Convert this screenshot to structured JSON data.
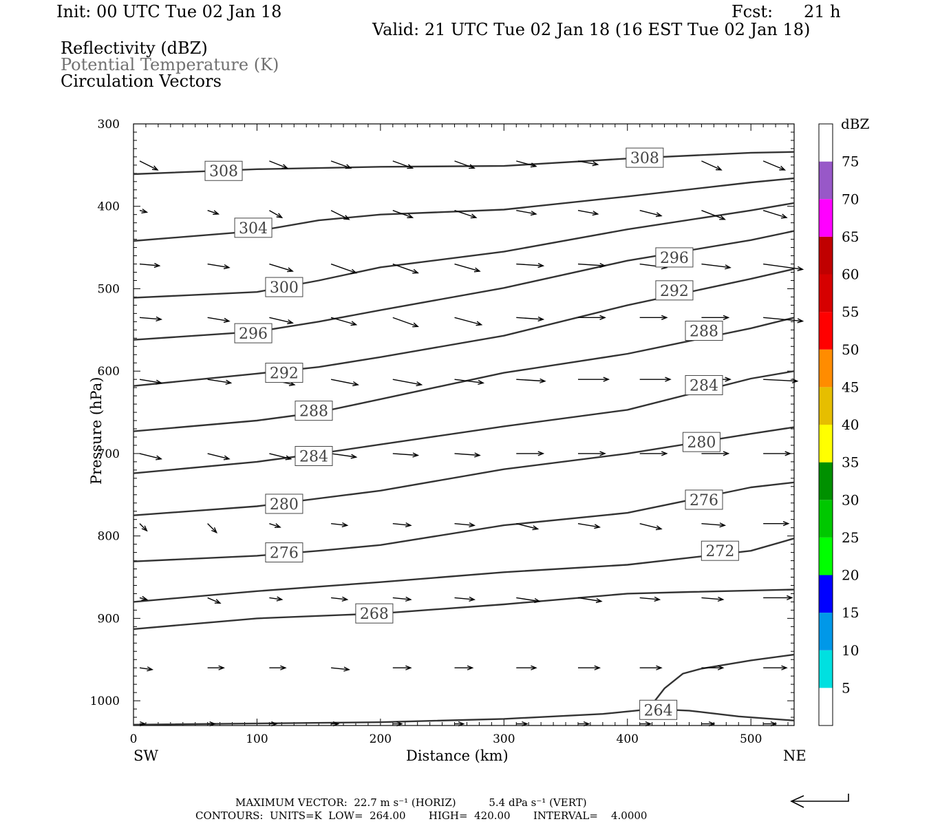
{
  "header": {
    "init": "Init: 00 UTC Tue 02 Jan 18",
    "fcst_label": "Fcst:",
    "fcst_value": "21 h",
    "valid": "Valid: 21 UTC Tue 02 Jan 18 (16 EST Tue 02 Jan 18)"
  },
  "legend_text": {
    "line1": "Reflectivity (dBZ)",
    "line2": "Potential Temperature (K)",
    "line3": "Circulation Vectors"
  },
  "footer": {
    "line1": "MAXIMUM VECTOR:  22.7 m s⁻¹ (HORIZ)          5.4 dPa s⁻¹ (VERT)",
    "line2": "CONTOURS:  UNITS=K  LOW=  264.00       HIGH=  420.00       INTERVAL=    4.0000"
  },
  "colorbar": {
    "title": "dBZ",
    "levels": [
      "5",
      "10",
      "15",
      "20",
      "25",
      "30",
      "35",
      "40",
      "45",
      "50",
      "55",
      "60",
      "65",
      "70",
      "75"
    ],
    "colors": [
      "#ffffff",
      "#00e0e0",
      "#0098e8",
      "#0000ff",
      "#00ff00",
      "#00c800",
      "#009000",
      "#ffff00",
      "#e6be00",
      "#ff8c00",
      "#ff0000",
      "#d60000",
      "#c00000",
      "#ff00ff",
      "#9858c8",
      "#ffffff"
    ]
  },
  "chart_data": {
    "type": "cross-section contour",
    "xlabel": "Distance (km)",
    "ylabel": "Pressure (hPa)",
    "x_end_left": "SW",
    "x_end_right": "NE",
    "xlim": [
      0,
      535
    ],
    "ylim": [
      1030,
      300
    ],
    "x_ticks": [
      0,
      100,
      200,
      300,
      400,
      500
    ],
    "y_ticks": [
      300,
      400,
      500,
      600,
      700,
      800,
      900,
      1000
    ],
    "contour_units": "K",
    "contours": [
      {
        "theta": 308,
        "points": [
          [
            0,
            361
          ],
          [
            100,
            355
          ],
          [
            200,
            352
          ],
          [
            300,
            351
          ],
          [
            400,
            342
          ],
          [
            500,
            335
          ],
          [
            535,
            334
          ]
        ],
        "label_at": [
          [
            73,
            357
          ],
          [
            414,
            341
          ]
        ]
      },
      {
        "theta": 304,
        "points": [
          [
            0,
            442
          ],
          [
            100,
            430
          ],
          [
            150,
            417
          ],
          [
            200,
            410
          ],
          [
            300,
            404
          ],
          [
            400,
            388
          ],
          [
            500,
            371
          ],
          [
            535,
            366
          ]
        ],
        "label_at": [
          [
            97,
            426
          ]
        ]
      },
      {
        "theta": 300,
        "points": [
          [
            0,
            511
          ],
          [
            100,
            504
          ],
          [
            150,
            490
          ],
          [
            200,
            474
          ],
          [
            300,
            455
          ],
          [
            400,
            428
          ],
          [
            500,
            405
          ],
          [
            535,
            396
          ]
        ],
        "label_at": [
          [
            122,
            498
          ]
        ]
      },
      {
        "theta": 296,
        "points": [
          [
            0,
            562
          ],
          [
            100,
            552
          ],
          [
            150,
            540
          ],
          [
            200,
            526
          ],
          [
            300,
            499
          ],
          [
            400,
            466
          ],
          [
            500,
            441
          ],
          [
            535,
            430
          ]
        ],
        "label_at": [
          [
            97,
            554
          ],
          [
            438,
            462
          ]
        ]
      },
      {
        "theta": 292,
        "points": [
          [
            0,
            618
          ],
          [
            100,
            603
          ],
          [
            150,
            595
          ],
          [
            200,
            583
          ],
          [
            300,
            557
          ],
          [
            400,
            520
          ],
          [
            500,
            488
          ],
          [
            535,
            476
          ]
        ],
        "label_at": [
          [
            122,
            602
          ],
          [
            438,
            502
          ]
        ]
      },
      {
        "theta": 288,
        "points": [
          [
            0,
            673
          ],
          [
            100,
            660
          ],
          [
            150,
            650
          ],
          [
            200,
            634
          ],
          [
            300,
            602
          ],
          [
            400,
            579
          ],
          [
            500,
            548
          ],
          [
            535,
            535
          ]
        ],
        "label_at": [
          [
            146,
            648
          ],
          [
            462,
            551
          ]
        ]
      },
      {
        "theta": 284,
        "points": [
          [
            0,
            724
          ],
          [
            100,
            710
          ],
          [
            150,
            700
          ],
          [
            200,
            689
          ],
          [
            300,
            667
          ],
          [
            400,
            647
          ],
          [
            500,
            609
          ],
          [
            535,
            600
          ]
        ],
        "label_at": [
          [
            146,
            703
          ],
          [
            462,
            617
          ]
        ]
      },
      {
        "theta": 280,
        "points": [
          [
            0,
            775
          ],
          [
            100,
            764
          ],
          [
            200,
            745
          ],
          [
            300,
            719
          ],
          [
            400,
            700
          ],
          [
            500,
            676
          ],
          [
            535,
            668
          ]
        ],
        "label_at": [
          [
            122,
            761
          ],
          [
            460,
            686
          ]
        ]
      },
      {
        "theta": 276,
        "points": [
          [
            0,
            831
          ],
          [
            100,
            824
          ],
          [
            150,
            818
          ],
          [
            200,
            811
          ],
          [
            300,
            787
          ],
          [
            400,
            772
          ],
          [
            500,
            741
          ],
          [
            535,
            735
          ]
        ],
        "label_at": [
          [
            122,
            820
          ],
          [
            462,
            756
          ]
        ]
      },
      {
        "theta": 272,
        "points": [
          [
            0,
            880
          ],
          [
            100,
            867
          ],
          [
            200,
            856
          ],
          [
            300,
            844
          ],
          [
            400,
            835
          ],
          [
            500,
            818
          ],
          [
            535,
            803
          ]
        ],
        "label_at": [
          [
            475,
            818
          ]
        ]
      },
      {
        "theta": 268,
        "points": [
          [
            0,
            913
          ],
          [
            100,
            900
          ],
          [
            200,
            894
          ],
          [
            300,
            883
          ],
          [
            400,
            870
          ],
          [
            450,
            868
          ],
          [
            535,
            865
          ]
        ],
        "label_at": [
          [
            195,
            894
          ]
        ]
      },
      {
        "theta": 264,
        "points": [
          [
            0,
            1029
          ],
          [
            200,
            1026
          ],
          [
            300,
            1022
          ],
          [
            380,
            1016
          ],
          [
            420,
            1010
          ],
          [
            450,
            1012
          ],
          [
            490,
            1019
          ],
          [
            535,
            1024
          ]
        ],
        "label_at": [
          [
            425,
            1011
          ]
        ]
      },
      {
        "theta": 264,
        "points": [
          [
            417,
            1010
          ],
          [
            430,
            985
          ],
          [
            445,
            967
          ],
          [
            460,
            961
          ],
          [
            500,
            951
          ],
          [
            535,
            944
          ]
        ]
      }
    ],
    "vector_rows_hpa": [
      345,
      405,
      470,
      535,
      610,
      700,
      785,
      875,
      960,
      1028
    ],
    "vector_cols_km": [
      5,
      60,
      110,
      160,
      210,
      260,
      310,
      360,
      410,
      460,
      510
    ],
    "vectors": [
      [
        [
          10,
          5
        ],
        [
          0,
          0
        ],
        [
          10,
          4
        ],
        [
          11,
          4
        ],
        [
          11,
          4
        ],
        [
          11,
          4
        ],
        [
          11,
          3
        ],
        [
          11,
          2
        ],
        [
          11,
          3
        ],
        [
          11,
          5
        ],
        [
          12,
          5
        ]
      ],
      [
        [
          4,
          1
        ],
        [
          6,
          2
        ],
        [
          7,
          4
        ],
        [
          10,
          5
        ],
        [
          11,
          4
        ],
        [
          12,
          4
        ],
        [
          11,
          2
        ],
        [
          11,
          2
        ],
        [
          12,
          3
        ],
        [
          13,
          5
        ],
        [
          13,
          4
        ]
      ],
      [
        [
          11,
          1
        ],
        [
          12,
          2
        ],
        [
          13,
          4
        ],
        [
          14,
          5
        ],
        [
          14,
          5
        ],
        [
          14,
          4
        ],
        [
          15,
          1
        ],
        [
          15,
          1
        ],
        [
          15,
          2
        ],
        [
          16,
          2
        ],
        [
          22,
          3
        ]
      ],
      [
        [
          12,
          1
        ],
        [
          12,
          2
        ],
        [
          13,
          3
        ],
        [
          14,
          4
        ],
        [
          14,
          5
        ],
        [
          15,
          4
        ],
        [
          15,
          1
        ],
        [
          15,
          0
        ],
        [
          15,
          0
        ],
        [
          15,
          0
        ],
        [
          22,
          2
        ]
      ],
      [
        [
          12,
          2
        ],
        [
          13,
          2
        ],
        [
          14,
          3
        ],
        [
          15,
          3
        ],
        [
          16,
          3
        ],
        [
          16,
          2
        ],
        [
          16,
          1
        ],
        [
          17,
          0
        ],
        [
          17,
          0
        ],
        [
          16,
          0
        ],
        [
          19,
          1
        ]
      ],
      [
        [
          12,
          3
        ],
        [
          12,
          3
        ],
        [
          12,
          3
        ],
        [
          14,
          2
        ],
        [
          14,
          1
        ],
        [
          14,
          1
        ],
        [
          15,
          0
        ],
        [
          15,
          0
        ],
        [
          15,
          0
        ],
        [
          15,
          0
        ],
        [
          15,
          0
        ]
      ],
      [
        [
          4,
          4
        ],
        [
          5,
          5
        ],
        [
          6,
          2
        ],
        [
          9,
          1
        ],
        [
          10,
          1
        ],
        [
          11,
          1
        ],
        [
          12,
          3
        ],
        [
          12,
          2
        ],
        [
          12,
          3
        ],
        [
          13,
          1
        ],
        [
          14,
          0
        ]
      ],
      [
        [
          4,
          1
        ],
        [
          7,
          3
        ],
        [
          7,
          1
        ],
        [
          9,
          1
        ],
        [
          10,
          1
        ],
        [
          11,
          1
        ],
        [
          13,
          2
        ],
        [
          13,
          2
        ],
        [
          11,
          1
        ],
        [
          12,
          1
        ],
        [
          16,
          0
        ]
      ],
      [
        [
          7,
          1
        ],
        [
          9,
          0
        ],
        [
          9,
          0
        ],
        [
          10,
          1
        ],
        [
          10,
          0
        ],
        [
          10,
          0
        ],
        [
          11,
          0
        ],
        [
          12,
          0
        ],
        [
          12,
          0
        ],
        [
          12,
          0
        ],
        [
          13,
          0
        ]
      ],
      [
        [
          3,
          0
        ],
        [
          4,
          0
        ],
        [
          4,
          0
        ],
        [
          4,
          0
        ],
        [
          5,
          0
        ],
        [
          5,
          0
        ],
        [
          6,
          0
        ],
        [
          6,
          0
        ],
        [
          6,
          0
        ],
        [
          7,
          0
        ],
        [
          7,
          0
        ]
      ]
    ]
  }
}
